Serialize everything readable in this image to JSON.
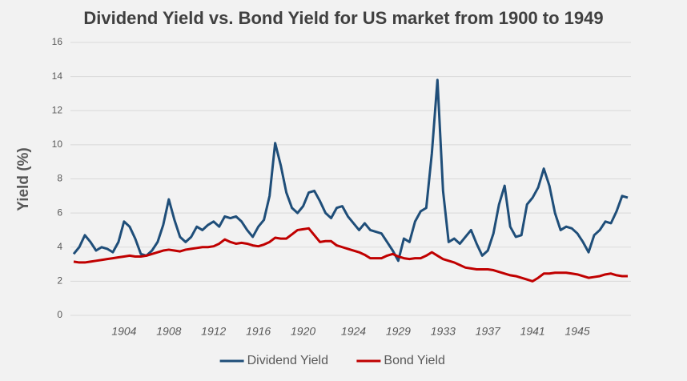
{
  "chart_data": {
    "type": "line",
    "title": "Dividend Yield vs. Bond Yield for US market from 1900 to 1949",
    "y_label": "Yield (%)",
    "categories": [
      null,
      null,
      null,
      null,
      null,
      null,
      null,
      null,
      null,
      "1904",
      null,
      null,
      null,
      null,
      null,
      null,
      null,
      "1908",
      null,
      null,
      null,
      null,
      null,
      null,
      null,
      "1912",
      null,
      null,
      null,
      null,
      null,
      null,
      null,
      "1916",
      null,
      null,
      null,
      null,
      null,
      null,
      null,
      "1920",
      null,
      null,
      null,
      null,
      null,
      null,
      null,
      null,
      "1924",
      null,
      null,
      null,
      null,
      null,
      null,
      null,
      "1929",
      null,
      null,
      null,
      null,
      null,
      null,
      null,
      "1933",
      null,
      null,
      null,
      null,
      null,
      null,
      null,
      "1937",
      null,
      null,
      null,
      null,
      null,
      null,
      null,
      "1941",
      null,
      null,
      null,
      null,
      null,
      null,
      null,
      "1945",
      null,
      null,
      null,
      null,
      null,
      null,
      null,
      null,
      null
    ],
    "series": [
      {
        "name": "Dividend Yield",
        "color": "#1f4e79",
        "values": [
          3.6,
          4.0,
          4.7,
          4.3,
          3.8,
          4.0,
          3.9,
          3.7,
          4.3,
          5.5,
          5.2,
          4.5,
          3.6,
          3.5,
          3.8,
          4.3,
          5.3,
          6.8,
          5.6,
          4.6,
          4.3,
          4.6,
          5.2,
          5.0,
          5.3,
          5.5,
          5.2,
          5.8,
          5.7,
          5.8,
          5.5,
          5.0,
          4.6,
          5.2,
          5.6,
          7.0,
          10.1,
          8.8,
          7.2,
          6.3,
          6.0,
          6.4,
          7.2,
          7.3,
          6.7,
          6.0,
          5.7,
          6.3,
          6.4,
          5.8,
          5.4,
          5.0,
          5.4,
          5.0,
          4.9,
          4.8,
          4.3,
          3.8,
          3.2,
          4.5,
          4.3,
          5.5,
          6.1,
          6.3,
          9.5,
          13.8,
          7.3,
          4.3,
          4.5,
          4.2,
          4.6,
          5.0,
          4.2,
          3.5,
          3.8,
          4.8,
          6.5,
          7.6,
          5.2,
          4.6,
          4.7,
          6.5,
          6.9,
          7.5,
          8.6,
          7.6,
          6.0,
          5.0,
          5.2,
          5.1,
          4.8,
          4.3,
          3.7,
          4.7,
          5.0,
          5.5,
          5.4,
          6.1,
          7.0,
          6.9
        ]
      },
      {
        "name": "Bond Yield",
        "color": "#c00000",
        "values": [
          3.15,
          3.1,
          3.1,
          3.15,
          3.2,
          3.25,
          3.3,
          3.35,
          3.4,
          3.45,
          3.5,
          3.45,
          3.45,
          3.5,
          3.6,
          3.7,
          3.8,
          3.85,
          3.8,
          3.75,
          3.85,
          3.9,
          3.95,
          4.0,
          4.0,
          4.05,
          4.2,
          4.45,
          4.3,
          4.2,
          4.25,
          4.2,
          4.1,
          4.05,
          4.15,
          4.3,
          4.55,
          4.5,
          4.5,
          4.75,
          5.0,
          5.05,
          5.1,
          4.7,
          4.3,
          4.35,
          4.35,
          4.1,
          4.0,
          3.9,
          3.8,
          3.7,
          3.55,
          3.35,
          3.35,
          3.35,
          3.5,
          3.6,
          3.45,
          3.35,
          3.3,
          3.35,
          3.35,
          3.5,
          3.7,
          3.5,
          3.3,
          3.2,
          3.1,
          2.95,
          2.8,
          2.75,
          2.7,
          2.7,
          2.7,
          2.65,
          2.55,
          2.45,
          2.35,
          2.3,
          2.2,
          2.1,
          2.0,
          2.2,
          2.45,
          2.45,
          2.5,
          2.5,
          2.5,
          2.45,
          2.4,
          2.3,
          2.2,
          2.25,
          2.3,
          2.4,
          2.45,
          2.35,
          2.3,
          2.3
        ]
      }
    ],
    "ylim": [
      0,
      16
    ],
    "yticks": [
      0,
      2,
      4,
      6,
      8,
      10,
      12,
      14,
      16
    ],
    "grid": true,
    "legend": "bottom"
  }
}
